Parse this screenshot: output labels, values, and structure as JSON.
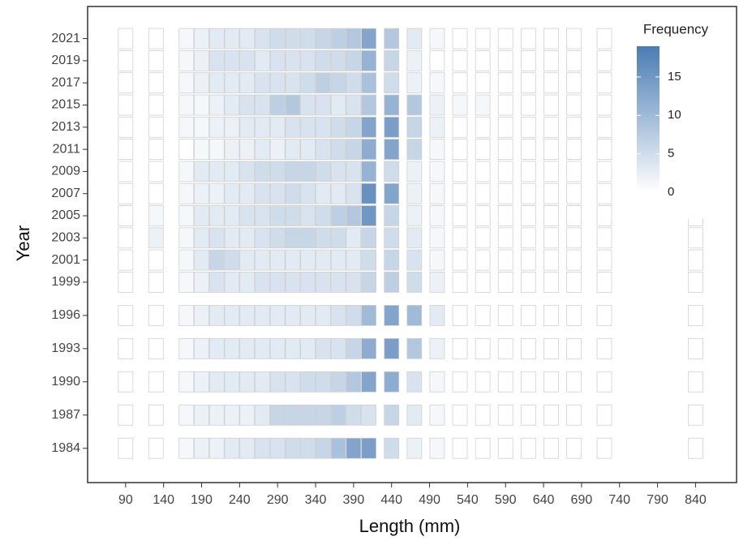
{
  "chart_data": {
    "type": "heatmap",
    "x_label": "Length (mm)",
    "y_label": "Year",
    "x": [
      90,
      130,
      170,
      190,
      210,
      230,
      250,
      270,
      290,
      310,
      330,
      350,
      370,
      390,
      410,
      440,
      470,
      500,
      530,
      560,
      590,
      620,
      650,
      680,
      720,
      840
    ],
    "y": [
      1984,
      1987,
      1990,
      1993,
      1996,
      1999,
      2001,
      2003,
      2005,
      2007,
      2009,
      2011,
      2013,
      2015,
      2017,
      2019,
      2021
    ],
    "values": [
      [
        0,
        0,
        1,
        2,
        2,
        3,
        3,
        4,
        4,
        5,
        5,
        6,
        9,
        13,
        14,
        5,
        2,
        1,
        0,
        0,
        0,
        0,
        0,
        0,
        0,
        0
      ],
      [
        0,
        0,
        1,
        2,
        2,
        2,
        2,
        3,
        6,
        6,
        6,
        6,
        7,
        5,
        4,
        6,
        3,
        1,
        0,
        0,
        0,
        0,
        0,
        0,
        0,
        0
      ],
      [
        0,
        0,
        1,
        2,
        3,
        3,
        3,
        3,
        4,
        4,
        5,
        5,
        6,
        8,
        13,
        12,
        4,
        1,
        0,
        0,
        0,
        0,
        0,
        0,
        0,
        0
      ],
      [
        0,
        0,
        1,
        2,
        3,
        3,
        3,
        3,
        3,
        3,
        3,
        4,
        4,
        6,
        12,
        14,
        8,
        2,
        0,
        0,
        0,
        0,
        0,
        0,
        0,
        0
      ],
      [
        0,
        0,
        1,
        2,
        3,
        3,
        3,
        3,
        3,
        3,
        3,
        3,
        4,
        5,
        10,
        13,
        10,
        3,
        0,
        0,
        0,
        0,
        0,
        0,
        0,
        0
      ],
      [
        0,
        0,
        1,
        2,
        4,
        3,
        3,
        4,
        4,
        4,
        4,
        4,
        4,
        4,
        6,
        7,
        5,
        2,
        0,
        0,
        0,
        0,
        0,
        0,
        0,
        0
      ],
      [
        0,
        0,
        1,
        3,
        6,
        5,
        3,
        3,
        3,
        3,
        3,
        3,
        3,
        3,
        5,
        6,
        4,
        1,
        0,
        0,
        0,
        0,
        0,
        0,
        0,
        0
      ],
      [
        0,
        2,
        1,
        3,
        4,
        3,
        3,
        4,
        5,
        6,
        6,
        5,
        5,
        3,
        6,
        5,
        3,
        1,
        0,
        0,
        0,
        0,
        0,
        0,
        0,
        0
      ],
      [
        0,
        1,
        1,
        3,
        3,
        3,
        4,
        4,
        5,
        5,
        4,
        5,
        7,
        8,
        15,
        6,
        2,
        1,
        0,
        0,
        0,
        0,
        0,
        0,
        0,
        0
      ],
      [
        0,
        0,
        1,
        2,
        2,
        3,
        3,
        4,
        4,
        5,
        4,
        3,
        3,
        4,
        16,
        13,
        2,
        1,
        0,
        0,
        0,
        0,
        0,
        0,
        0,
        0
      ],
      [
        0,
        0,
        1,
        3,
        3,
        3,
        4,
        5,
        5,
        6,
        6,
        5,
        4,
        4,
        11,
        5,
        2,
        1,
        0,
        0,
        0,
        0,
        0,
        0,
        0,
        0
      ],
      [
        0,
        0,
        0,
        1,
        1,
        2,
        2,
        3,
        2,
        3,
        3,
        4,
        5,
        6,
        12,
        13,
        6,
        1,
        0,
        0,
        0,
        0,
        0,
        0,
        0,
        0
      ],
      [
        0,
        0,
        1,
        1,
        2,
        2,
        3,
        3,
        3,
        4,
        4,
        4,
        5,
        6,
        13,
        14,
        6,
        2,
        0,
        0,
        0,
        0,
        0,
        0,
        0,
        0
      ],
      [
        0,
        0,
        1,
        1,
        2,
        3,
        4,
        4,
        7,
        8,
        4,
        4,
        3,
        4,
        8,
        11,
        8,
        2,
        1,
        1,
        0,
        0,
        0,
        0,
        0,
        0
      ],
      [
        0,
        0,
        1,
        2,
        3,
        3,
        3,
        4,
        4,
        4,
        5,
        7,
        6,
        5,
        9,
        5,
        2,
        1,
        0,
        0,
        0,
        0,
        0,
        0,
        0,
        0
      ],
      [
        0,
        0,
        1,
        2,
        4,
        4,
        4,
        3,
        4,
        4,
        4,
        5,
        5,
        6,
        11,
        6,
        2,
        0,
        0,
        0,
        0,
        0,
        0,
        0,
        0,
        0
      ],
      [
        0,
        0,
        1,
        2,
        3,
        3,
        3,
        4,
        5,
        5,
        5,
        6,
        7,
        8,
        13,
        8,
        3,
        1,
        0,
        0,
        0,
        0,
        0,
        0,
        0,
        0
      ]
    ],
    "xlim": [
      40,
      894
    ],
    "ylim": [
      1980.9,
      2023.9
    ],
    "xticks": [
      90,
      140,
      190,
      240,
      290,
      340,
      390,
      440,
      490,
      540,
      590,
      640,
      690,
      740,
      790,
      840
    ],
    "yticks": [
      1984,
      1987,
      1990,
      1993,
      1996,
      1999,
      2001,
      2003,
      2005,
      2007,
      2009,
      2011,
      2013,
      2015,
      2017,
      2019,
      2021
    ],
    "legend": {
      "title": "Frequency",
      "colorlim": [
        0,
        19
      ],
      "ticks": [
        0,
        5,
        10,
        15
      ],
      "colors": [
        "#ffffff",
        "#4a7cb3"
      ]
    }
  }
}
